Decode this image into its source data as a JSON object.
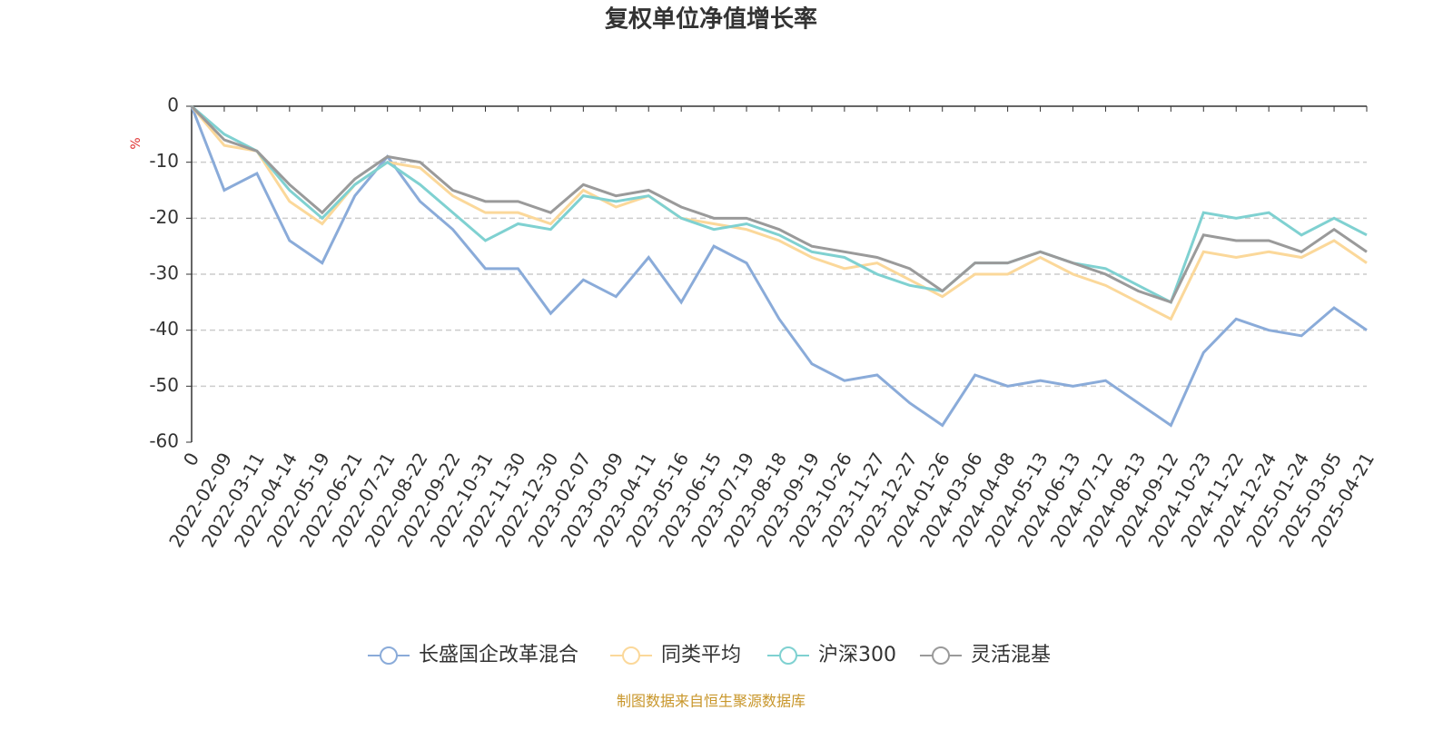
{
  "chart_data": {
    "type": "line",
    "title": "复权单位净值增长率",
    "y_label": "%",
    "source": "制图数据来自恒生聚源数据库",
    "categories": [
      "0",
      "2022-02-09",
      "2022-03-11",
      "2022-04-14",
      "2022-05-19",
      "2022-06-21",
      "2022-07-21",
      "2022-08-22",
      "2022-09-22",
      "2022-10-31",
      "2022-11-30",
      "2022-12-30",
      "2023-02-07",
      "2023-03-09",
      "2023-04-11",
      "2023-05-16",
      "2023-06-15",
      "2023-07-19",
      "2023-08-18",
      "2023-09-19",
      "2023-10-26",
      "2023-11-27",
      "2023-12-27",
      "2024-01-26",
      "2024-03-06",
      "2024-04-08",
      "2024-05-13",
      "2024-06-13",
      "2024-07-12",
      "2024-08-13",
      "2024-09-12",
      "2024-10-23",
      "2024-11-22",
      "2024-12-24",
      "2025-01-24",
      "2025-03-05",
      "2025-04-21"
    ],
    "series": [
      {
        "name": "长盛国企改革混合",
        "color": "#8aabd9",
        "values": [
          0,
          -15,
          -12,
          -24,
          -28,
          -16,
          -9,
          -17,
          -22,
          -29,
          -29,
          -37,
          -31,
          -34,
          -27,
          -35,
          -25,
          -28,
          -38,
          -46,
          -49,
          -48,
          -53,
          -57,
          -48,
          -50,
          -49,
          -50,
          -49,
          -53,
          -57,
          -44,
          -38,
          -40,
          -41,
          -36,
          -40
        ]
      },
      {
        "name": "同类平均",
        "color": "#fbd89a",
        "values": [
          0,
          -7,
          -8,
          -17,
          -21,
          -14,
          -10,
          -11,
          -16,
          -19,
          -19,
          -21,
          -15,
          -18,
          -16,
          -20,
          -21,
          -22,
          -24,
          -27,
          -29,
          -28,
          -31,
          -34,
          -30,
          -30,
          -27,
          -30,
          -32,
          -35,
          -38,
          -26,
          -27,
          -26,
          -27,
          -24,
          -28
        ]
      },
      {
        "name": "沪深300",
        "color": "#7fd1d1",
        "values": [
          0,
          -5,
          -8,
          -15,
          -20,
          -14,
          -10,
          -14,
          -19,
          -24,
          -21,
          -22,
          -16,
          -17,
          -16,
          -20,
          -22,
          -21,
          -23,
          -26,
          -27,
          -30,
          -32,
          -33,
          -28,
          -28,
          -26,
          -28,
          -29,
          -32,
          -35,
          -19,
          -20,
          -19,
          -23,
          -20,
          -23
        ]
      },
      {
        "name": "灵活混基",
        "color": "#9a9a9a",
        "values": [
          0,
          -6,
          -8,
          -14,
          -19,
          -13,
          -9,
          -10,
          -15,
          -17,
          -17,
          -19,
          -14,
          -16,
          -15,
          -18,
          -20,
          -20,
          -22,
          -25,
          -26,
          -27,
          -29,
          -33,
          -28,
          -28,
          -26,
          -28,
          -30,
          -33,
          -35,
          -23,
          -24,
          -24,
          -26,
          -22,
          -26
        ]
      }
    ],
    "ylim": [
      -60,
      0
    ],
    "yticks": [
      0,
      -10,
      -20,
      -30,
      -40,
      -50,
      -60
    ],
    "grid": true
  }
}
